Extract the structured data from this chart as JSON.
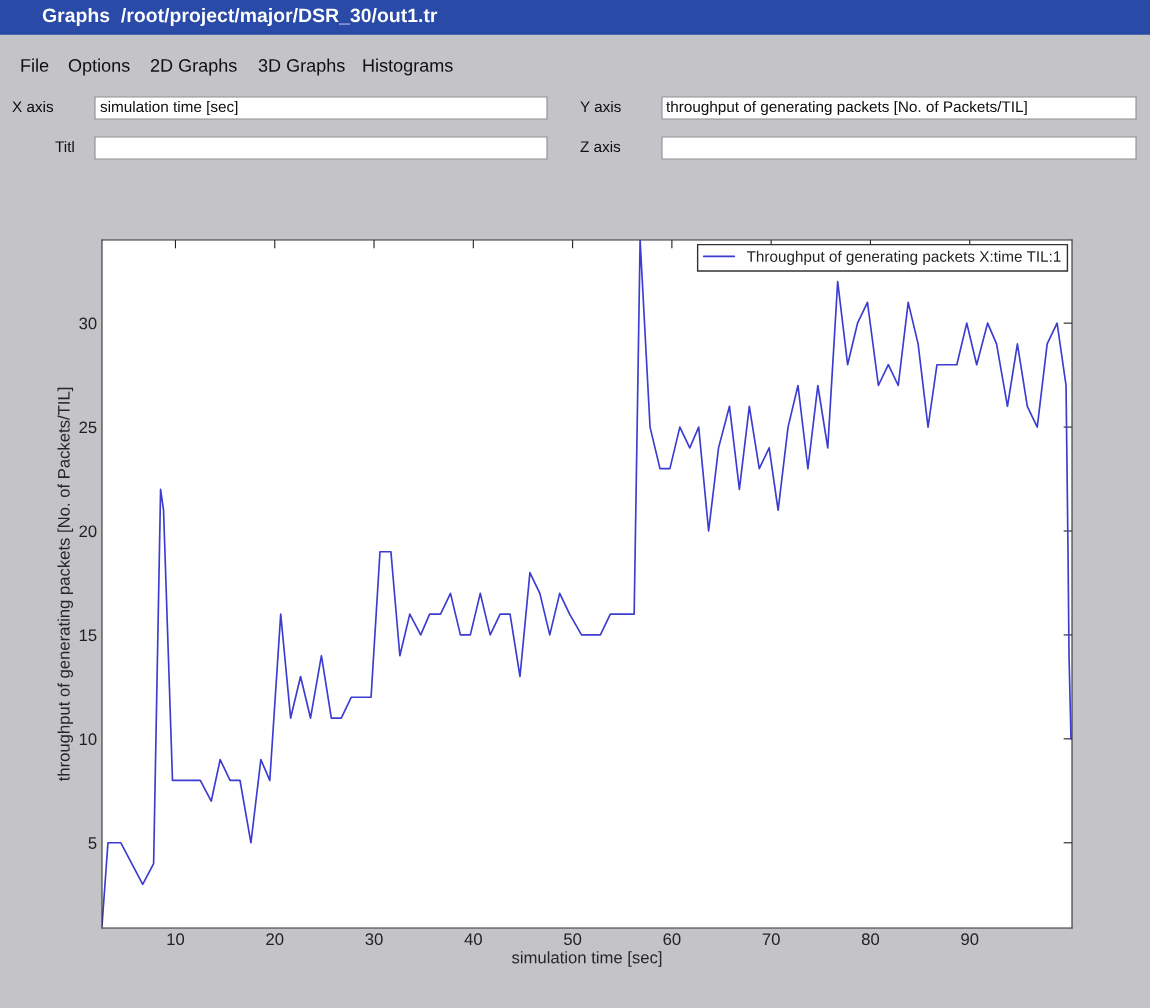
{
  "chart_data": {
    "type": "line",
    "title": "Graphs  /root/project/major/DSR_30/out1.tr",
    "xlabel": "simulation time [sec]",
    "ylabel": "throughput of generating packets [No. of Packets/TIL]",
    "annotations": [
      "File",
      "Options",
      "2D Graphs",
      "3D Graphs",
      "Histograms",
      "X axis",
      "simulation time [sec]",
      "Y axis",
      "throughput of generating packets [No. of Packets/TIL]",
      "Titl",
      "Z axis"
    ],
    "series": [
      {
        "name": "Throughput of generating packets X:time TIL:1",
        "color": "#3c3cd0",
        "x": [
          2.6,
          3.2,
          4.5,
          6.7,
          7.8,
          8.5,
          8.8,
          9.7,
          12.5,
          13.6,
          14.5,
          15.5,
          16.5,
          17.6,
          18.6,
          19.5,
          20.6,
          21.6,
          22.6,
          23.6,
          24.7,
          25.7,
          26.7,
          27.7,
          29.7,
          30.6,
          31.7,
          32.6,
          33.6,
          34.7,
          35.6,
          36.7,
          37.7,
          38.7,
          39.7,
          40.7,
          41.7,
          42.7,
          43.7,
          44.7,
          45.7,
          46.7,
          47.7,
          48.7,
          49.7,
          50.9,
          52.8,
          53.8,
          55.3,
          56.2,
          56.8,
          57.8,
          58.8,
          59.8,
          60.8,
          61.8,
          62.7,
          63.7,
          64.7,
          65.8,
          66.8,
          67.8,
          68.8,
          69.8,
          70.7,
          71.7,
          72.7,
          73.7,
          74.7,
          75.7,
          76.7,
          77.7,
          78.7,
          79.7,
          80.8,
          81.8,
          82.8,
          83.8,
          84.8,
          85.8,
          86.7,
          88.7,
          89.7,
          90.7,
          91.8,
          92.7,
          93.8,
          94.8,
          95.8,
          96.8,
          97.8,
          98.8,
          99.7,
          99.9,
          100.0,
          100.2
        ],
        "values": [
          1,
          5,
          5,
          3,
          4,
          22,
          21,
          8,
          8,
          7,
          9,
          8,
          8,
          5,
          9,
          8,
          16,
          11,
          13,
          11,
          14,
          11,
          11,
          12,
          12,
          19,
          19,
          14,
          16,
          15,
          16,
          16,
          17,
          15,
          15,
          17,
          15,
          16,
          16,
          13,
          18,
          17,
          15,
          17,
          16,
          15,
          15,
          16,
          16,
          16,
          34,
          25,
          23,
          23,
          25,
          24,
          25,
          20,
          24,
          26,
          22,
          26,
          23,
          24,
          21,
          25,
          27,
          23,
          27,
          24,
          32,
          28,
          30,
          31,
          27,
          28,
          27,
          31,
          29,
          25,
          28,
          28,
          30,
          28,
          30,
          29,
          26,
          29,
          26,
          25,
          29,
          30,
          27,
          19,
          14,
          10
        ]
      }
    ],
    "xlim": [
      2.6,
      100.3
    ],
    "ylim": [
      0.9,
      34
    ],
    "xticks": [
      10,
      20,
      30,
      40,
      50,
      60,
      70,
      80,
      90
    ],
    "yticks": [
      5,
      10,
      15,
      20,
      25,
      30
    ],
    "grid": false,
    "legend": "top right",
    "marker": "none",
    "line_style": "solid"
  }
}
